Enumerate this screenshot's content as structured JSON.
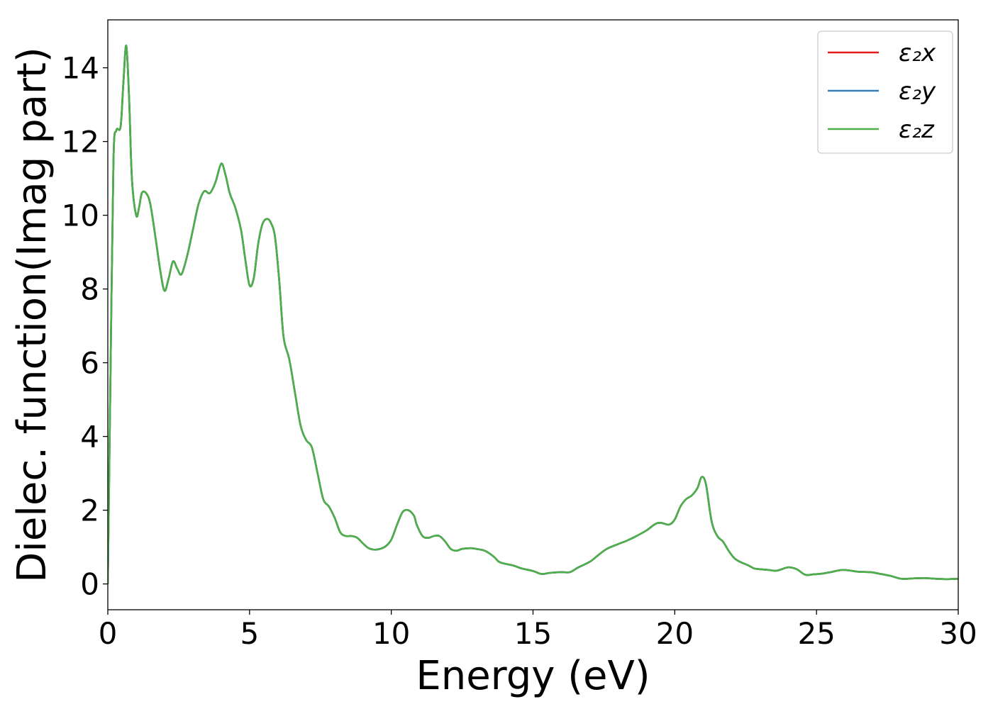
{
  "chart_data": {
    "type": "line",
    "title": "",
    "xlabel": "Energy (eV)",
    "ylabel": "Dielec. function(Imag part)",
    "xlim": [
      0,
      30
    ],
    "ylim": [
      -0.7,
      15.3
    ],
    "xticks": [
      0,
      5,
      10,
      15,
      20,
      25,
      30
    ],
    "yticks": [
      0,
      2,
      4,
      6,
      8,
      10,
      12,
      14
    ],
    "grid": false,
    "legend_position": "top-right",
    "x": [
      0,
      0.1,
      0.2,
      0.3,
      0.45,
      0.55,
      0.65,
      0.75,
      0.85,
      1.0,
      1.1,
      1.2,
      1.35,
      1.5,
      1.7,
      1.85,
      2.0,
      2.15,
      2.3,
      2.45,
      2.6,
      2.8,
      3.0,
      3.2,
      3.4,
      3.6,
      3.8,
      4.0,
      4.15,
      4.3,
      4.5,
      4.7,
      4.85,
      5.0,
      5.15,
      5.3,
      5.45,
      5.6,
      5.75,
      5.9,
      6.05,
      6.2,
      6.4,
      6.6,
      6.8,
      7.0,
      7.2,
      7.4,
      7.6,
      7.8,
      8.0,
      8.2,
      8.4,
      8.6,
      8.8,
      9.0,
      9.2,
      9.4,
      9.6,
      9.8,
      10.0,
      10.2,
      10.4,
      10.6,
      10.8,
      10.9,
      11.1,
      11.3,
      11.5,
      11.7,
      11.9,
      12.1,
      12.3,
      12.5,
      12.8,
      13.0,
      13.3,
      13.6,
      13.8,
      14.0,
      14.3,
      14.6,
      15.0,
      15.3,
      15.6,
      16.0,
      16.3,
      16.6,
      17.0,
      17.3,
      17.6,
      18.0,
      18.3,
      18.6,
      19.0,
      19.3,
      19.5,
      19.8,
      20.0,
      20.2,
      20.4,
      20.6,
      20.8,
      20.95,
      21.1,
      21.3,
      21.5,
      21.7,
      21.9,
      22.1,
      22.3,
      22.6,
      22.8,
      23.0,
      23.3,
      23.6,
      24.0,
      24.3,
      24.6,
      24.9,
      25.2,
      25.5,
      25.9,
      26.2,
      26.5,
      26.9,
      27.2,
      27.6,
      28.0,
      28.4,
      28.8,
      29.2,
      29.6,
      30.0
    ],
    "series": [
      {
        "name": "ε₂x",
        "color": "#e31a1c",
        "y": [
          0,
          6.0,
          11.5,
          12.3,
          12.4,
          13.6,
          14.6,
          13.2,
          11.0,
          10.0,
          10.2,
          10.6,
          10.6,
          10.3,
          9.3,
          8.5,
          7.95,
          8.3,
          8.75,
          8.55,
          8.4,
          8.9,
          9.6,
          10.3,
          10.65,
          10.6,
          10.9,
          11.4,
          11.1,
          10.6,
          10.2,
          9.6,
          8.8,
          8.1,
          8.3,
          9.2,
          9.75,
          9.9,
          9.8,
          9.4,
          8.2,
          6.7,
          6.1,
          5.2,
          4.3,
          3.9,
          3.7,
          3.0,
          2.3,
          2.1,
          1.8,
          1.4,
          1.3,
          1.3,
          1.25,
          1.1,
          0.97,
          0.93,
          0.95,
          1.02,
          1.2,
          1.6,
          1.95,
          2.0,
          1.85,
          1.6,
          1.3,
          1.25,
          1.3,
          1.3,
          1.15,
          0.95,
          0.9,
          0.95,
          0.97,
          0.95,
          0.9,
          0.75,
          0.6,
          0.55,
          0.5,
          0.42,
          0.35,
          0.27,
          0.3,
          0.32,
          0.32,
          0.45,
          0.6,
          0.78,
          0.95,
          1.08,
          1.17,
          1.28,
          1.45,
          1.62,
          1.66,
          1.61,
          1.75,
          2.1,
          2.3,
          2.4,
          2.6,
          2.9,
          2.7,
          1.7,
          1.3,
          1.15,
          0.9,
          0.7,
          0.6,
          0.5,
          0.42,
          0.4,
          0.38,
          0.36,
          0.45,
          0.4,
          0.25,
          0.26,
          0.28,
          0.32,
          0.38,
          0.36,
          0.33,
          0.32,
          0.28,
          0.22,
          0.14,
          0.15,
          0.16,
          0.14,
          0.13,
          0.14
        ]
      },
      {
        "name": "ε₂y",
        "color": "#377eb8",
        "y": [
          0,
          6.0,
          11.5,
          12.3,
          12.4,
          13.6,
          14.6,
          13.2,
          11.0,
          10.0,
          10.2,
          10.6,
          10.6,
          10.3,
          9.3,
          8.5,
          7.95,
          8.3,
          8.75,
          8.55,
          8.4,
          8.9,
          9.6,
          10.3,
          10.65,
          10.6,
          10.9,
          11.4,
          11.1,
          10.6,
          10.2,
          9.6,
          8.8,
          8.1,
          8.3,
          9.2,
          9.75,
          9.9,
          9.8,
          9.4,
          8.2,
          6.7,
          6.1,
          5.2,
          4.3,
          3.9,
          3.7,
          3.0,
          2.3,
          2.1,
          1.8,
          1.4,
          1.3,
          1.3,
          1.25,
          1.1,
          0.97,
          0.93,
          0.95,
          1.02,
          1.2,
          1.6,
          1.95,
          2.0,
          1.85,
          1.6,
          1.3,
          1.25,
          1.3,
          1.3,
          1.15,
          0.95,
          0.9,
          0.95,
          0.97,
          0.95,
          0.9,
          0.75,
          0.6,
          0.55,
          0.5,
          0.42,
          0.35,
          0.27,
          0.3,
          0.32,
          0.32,
          0.45,
          0.6,
          0.78,
          0.95,
          1.08,
          1.17,
          1.28,
          1.45,
          1.62,
          1.66,
          1.61,
          1.75,
          2.1,
          2.3,
          2.4,
          2.6,
          2.9,
          2.7,
          1.7,
          1.3,
          1.15,
          0.9,
          0.7,
          0.6,
          0.5,
          0.42,
          0.4,
          0.38,
          0.36,
          0.45,
          0.4,
          0.25,
          0.26,
          0.28,
          0.32,
          0.38,
          0.36,
          0.33,
          0.32,
          0.28,
          0.22,
          0.14,
          0.15,
          0.16,
          0.14,
          0.13,
          0.14
        ]
      },
      {
        "name": "ε₂z",
        "color": "#4daf4a",
        "y": [
          0,
          6.0,
          11.5,
          12.3,
          12.4,
          13.6,
          14.6,
          13.2,
          11.0,
          10.0,
          10.2,
          10.6,
          10.6,
          10.3,
          9.3,
          8.5,
          7.95,
          8.3,
          8.75,
          8.55,
          8.4,
          8.9,
          9.6,
          10.3,
          10.65,
          10.6,
          10.9,
          11.4,
          11.1,
          10.6,
          10.2,
          9.6,
          8.8,
          8.1,
          8.3,
          9.2,
          9.75,
          9.9,
          9.8,
          9.4,
          8.2,
          6.7,
          6.1,
          5.2,
          4.3,
          3.9,
          3.7,
          3.0,
          2.3,
          2.1,
          1.8,
          1.4,
          1.3,
          1.3,
          1.25,
          1.1,
          0.97,
          0.93,
          0.95,
          1.02,
          1.2,
          1.6,
          1.95,
          2.0,
          1.85,
          1.6,
          1.3,
          1.25,
          1.3,
          1.3,
          1.15,
          0.95,
          0.9,
          0.95,
          0.97,
          0.95,
          0.9,
          0.75,
          0.6,
          0.55,
          0.5,
          0.42,
          0.35,
          0.27,
          0.3,
          0.32,
          0.32,
          0.45,
          0.6,
          0.78,
          0.95,
          1.08,
          1.17,
          1.28,
          1.45,
          1.62,
          1.66,
          1.61,
          1.75,
          2.1,
          2.3,
          2.4,
          2.6,
          2.9,
          2.7,
          1.7,
          1.3,
          1.15,
          0.9,
          0.7,
          0.6,
          0.5,
          0.42,
          0.4,
          0.38,
          0.36,
          0.45,
          0.4,
          0.25,
          0.26,
          0.28,
          0.32,
          0.38,
          0.36,
          0.33,
          0.32,
          0.28,
          0.22,
          0.14,
          0.15,
          0.16,
          0.14,
          0.13,
          0.14
        ]
      }
    ]
  }
}
